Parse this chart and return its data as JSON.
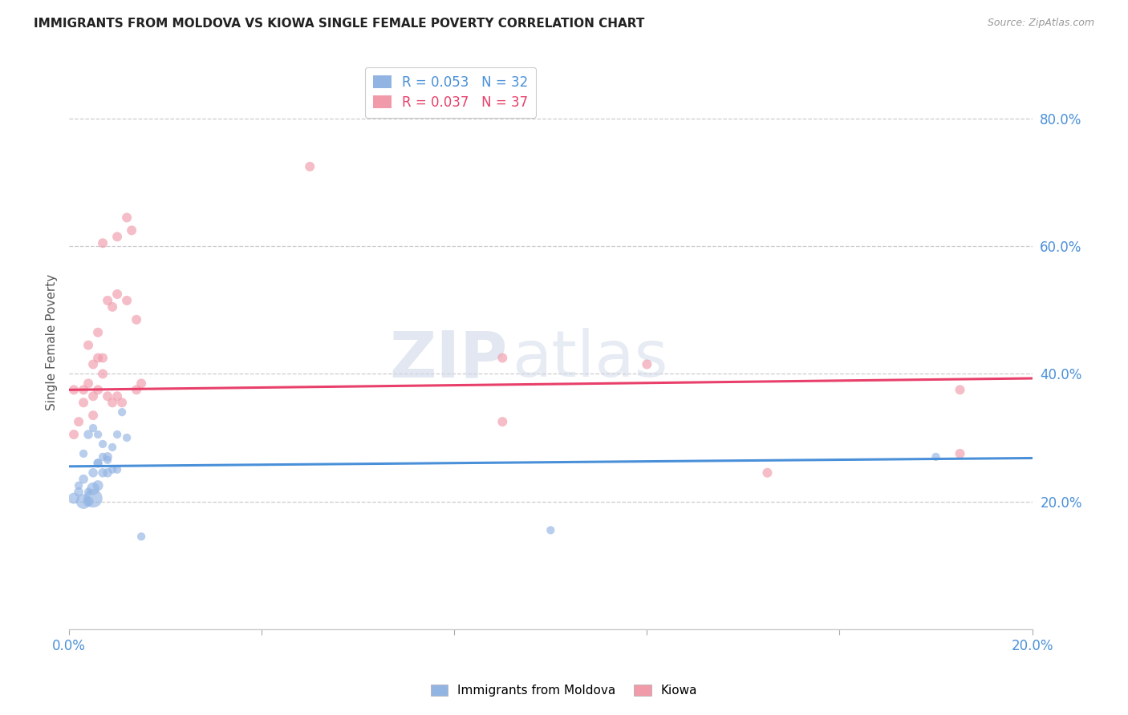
{
  "title": "IMMIGRANTS FROM MOLDOVA VS KIOWA SINGLE FEMALE POVERTY CORRELATION CHART",
  "source": "Source: ZipAtlas.com",
  "ylabel": "Single Female Poverty",
  "right_yticks": [
    "20.0%",
    "40.0%",
    "60.0%",
    "80.0%"
  ],
  "right_ytick_vals": [
    0.2,
    0.4,
    0.6,
    0.8
  ],
  "xlim": [
    0.0,
    0.2
  ],
  "ylim": [
    0.0,
    0.9
  ],
  "legend_blue_r": "R = 0.053",
  "legend_blue_n": "N = 32",
  "legend_pink_r": "R = 0.037",
  "legend_pink_n": "N = 37",
  "legend_blue_label": "Immigrants from Moldova",
  "legend_pink_label": "Kiowa",
  "blue_color": "#92b4e3",
  "pink_color": "#f09aaa",
  "trendline_blue_color": "#4a90d9",
  "trendline_pink_color": "#e8406a",
  "watermark_zip": "ZIP",
  "watermark_atlas": "atlas",
  "blue_scatter_x": [
    0.001,
    0.002,
    0.002,
    0.003,
    0.003,
    0.003,
    0.004,
    0.004,
    0.004,
    0.005,
    0.005,
    0.005,
    0.005,
    0.006,
    0.006,
    0.006,
    0.006,
    0.007,
    0.007,
    0.007,
    0.008,
    0.008,
    0.008,
    0.009,
    0.009,
    0.01,
    0.01,
    0.011,
    0.012,
    0.015,
    0.1,
    0.18
  ],
  "blue_scatter_y": [
    0.205,
    0.215,
    0.225,
    0.2,
    0.235,
    0.275,
    0.2,
    0.215,
    0.305,
    0.205,
    0.22,
    0.245,
    0.315,
    0.225,
    0.26,
    0.305,
    0.26,
    0.245,
    0.29,
    0.27,
    0.245,
    0.27,
    0.265,
    0.25,
    0.285,
    0.25,
    0.305,
    0.34,
    0.3,
    0.145,
    0.155,
    0.27
  ],
  "blue_scatter_sizes": [
    100,
    70,
    55,
    180,
    70,
    55,
    90,
    55,
    70,
    280,
    130,
    70,
    55,
    90,
    70,
    55,
    55,
    70,
    55,
    55,
    70,
    70,
    55,
    55,
    55,
    55,
    55,
    55,
    55,
    55,
    55,
    55
  ],
  "pink_scatter_x": [
    0.001,
    0.001,
    0.002,
    0.003,
    0.003,
    0.004,
    0.004,
    0.005,
    0.005,
    0.005,
    0.006,
    0.006,
    0.006,
    0.007,
    0.007,
    0.007,
    0.008,
    0.008,
    0.009,
    0.009,
    0.01,
    0.01,
    0.01,
    0.011,
    0.012,
    0.012,
    0.013,
    0.014,
    0.014,
    0.015,
    0.05,
    0.09,
    0.09,
    0.12,
    0.145,
    0.185,
    0.185
  ],
  "pink_scatter_y": [
    0.375,
    0.305,
    0.325,
    0.375,
    0.355,
    0.385,
    0.445,
    0.335,
    0.365,
    0.415,
    0.375,
    0.425,
    0.465,
    0.4,
    0.425,
    0.605,
    0.365,
    0.515,
    0.355,
    0.505,
    0.365,
    0.525,
    0.615,
    0.355,
    0.515,
    0.645,
    0.625,
    0.375,
    0.485,
    0.385,
    0.725,
    0.325,
    0.425,
    0.415,
    0.245,
    0.275,
    0.375
  ],
  "pink_scatter_sizes": [
    75,
    75,
    75,
    75,
    75,
    75,
    75,
    75,
    75,
    75,
    75,
    75,
    75,
    75,
    75,
    75,
    75,
    75,
    75,
    75,
    75,
    75,
    75,
    75,
    75,
    75,
    75,
    75,
    75,
    75,
    75,
    75,
    75,
    75,
    75,
    75,
    75
  ],
  "blue_trend_x": [
    0.0,
    0.2
  ],
  "blue_trend_y": [
    0.255,
    0.268
  ],
  "pink_trend_x": [
    0.0,
    0.2
  ],
  "pink_trend_y": [
    0.375,
    0.393
  ],
  "gridline_color": "#cccccc",
  "gridline_style": "--",
  "background_color": "#ffffff",
  "tick_color": "#4a90d9",
  "label_color": "#555555"
}
